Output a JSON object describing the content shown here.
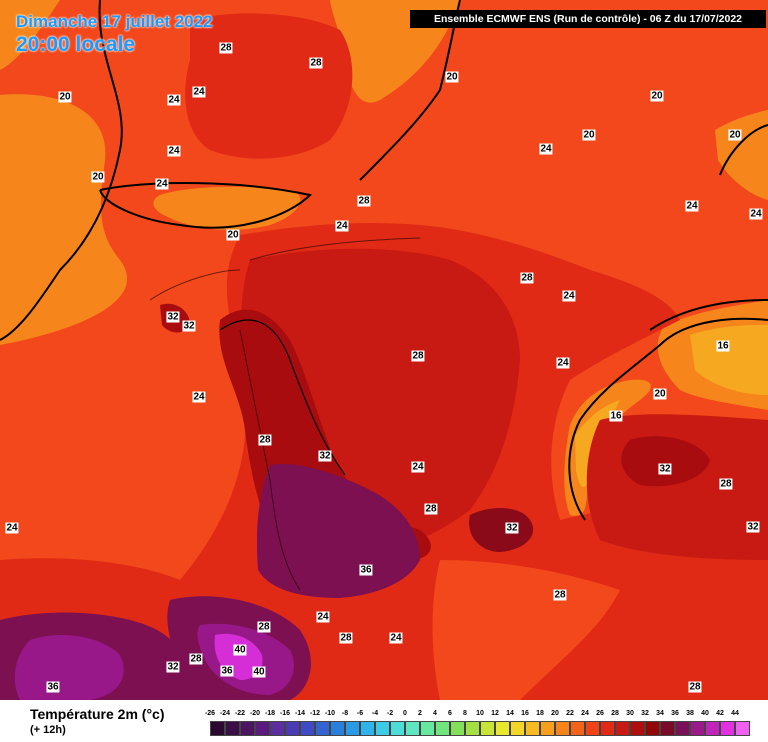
{
  "header": {
    "date": "Dimanche 17 juillet 2022",
    "time": "20:00 locale",
    "model": "Ensemble ECMWF ENS  (Run de contrôle)  -  06 Z du 17/07/2022"
  },
  "legend": {
    "title": "Température 2m (°c)",
    "subtitle": "(+ 12h)",
    "ticks": [
      "-26",
      "-24",
      "-22",
      "-20",
      "-18",
      "-16",
      "-14",
      "-12",
      "-10",
      "-8",
      "-6",
      "-4",
      "-2",
      "0",
      "2",
      "4",
      "6",
      "8",
      "10",
      "12",
      "14",
      "16",
      "18",
      "20",
      "22",
      "24",
      "26",
      "28",
      "30",
      "32",
      "34",
      "36",
      "38",
      "40",
      "42",
      "44"
    ],
    "colors": [
      "#2a0a2e",
      "#3a0f45",
      "#4b1560",
      "#5a1a80",
      "#5c2ea0",
      "#4a3ab4",
      "#3f4bc4",
      "#3464d0",
      "#2b7fdc",
      "#2a9ae6",
      "#2fb3ea",
      "#3ccbe6",
      "#4ddcd8",
      "#5ee6c0",
      "#66e89e",
      "#70e67c",
      "#84e05a",
      "#a4e042",
      "#c8e436",
      "#e8e82e",
      "#f4d628",
      "#f8bc22",
      "#f8a01e",
      "#f7841a",
      "#f46418",
      "#f04418",
      "#e02a16",
      "#c81a12",
      "#ae0e0e",
      "#900808",
      "#7a0a28",
      "#7a1058",
      "#9a1a8a",
      "#c024b8",
      "#e030e0",
      "#f060f0"
    ]
  },
  "map": {
    "colors": {
      "t16": "#f7a821",
      "t20": "#f6861c",
      "t24": "#f3481b",
      "t28": "#e02a16",
      "t30": "#c81a12",
      "t32": "#a80c0f",
      "t34": "#8a0a1a",
      "t36": "#7c1050",
      "t38": "#98188a",
      "t40": "#d62ed6"
    },
    "isotherm_labels": [
      "28",
      "28",
      "24",
      "24",
      "20",
      "20",
      "24",
      "24",
      "20",
      "20",
      "20",
      "20",
      "24",
      "24",
      "24",
      "28",
      "24",
      "20",
      "28",
      "24",
      "32",
      "32",
      "28",
      "24",
      "24",
      "28",
      "24",
      "28",
      "32",
      "16",
      "20",
      "16",
      "24",
      "32",
      "28",
      "32",
      "28",
      "36",
      "28",
      "32",
      "24",
      "28",
      "24",
      "32",
      "28",
      "40",
      "36",
      "40",
      "36",
      "28"
    ]
  }
}
